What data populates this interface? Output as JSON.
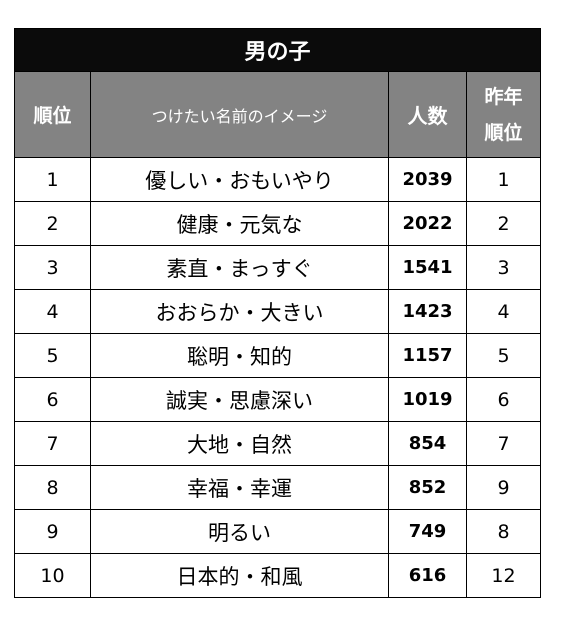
{
  "table": {
    "title": "男の子",
    "headers": {
      "rank": "順位",
      "image": "つけたい名前のイメージ",
      "people": "人数",
      "last_year_line1": "昨年",
      "last_year_line2": "順位"
    },
    "rows": [
      {
        "rank": "1",
        "image": "優しい・おもいやり",
        "people": "2039",
        "last_year": "1"
      },
      {
        "rank": "2",
        "image": "健康・元気な",
        "people": "2022",
        "last_year": "2"
      },
      {
        "rank": "3",
        "image": "素直・まっすぐ",
        "people": "1541",
        "last_year": "3"
      },
      {
        "rank": "4",
        "image": "おおらか・大きい",
        "people": "1423",
        "last_year": "4"
      },
      {
        "rank": "5",
        "image": "聡明・知的",
        "people": "1157",
        "last_year": "5"
      },
      {
        "rank": "6",
        "image": "誠実・思慮深い",
        "people": "1019",
        "last_year": "6"
      },
      {
        "rank": "7",
        "image": "大地・自然",
        "people": "854",
        "last_year": "7"
      },
      {
        "rank": "8",
        "image": "幸福・幸運",
        "people": "852",
        "last_year": "9"
      },
      {
        "rank": "9",
        "image": "明るい",
        "people": "749",
        "last_year": "8"
      },
      {
        "rank": "10",
        "image": "日本的・和風",
        "people": "616",
        "last_year": "12"
      }
    ]
  },
  "colors": {
    "title_background": "#0b0b0b",
    "header_background": "#838383",
    "header_text": "#ffffff",
    "border": "#000000"
  }
}
